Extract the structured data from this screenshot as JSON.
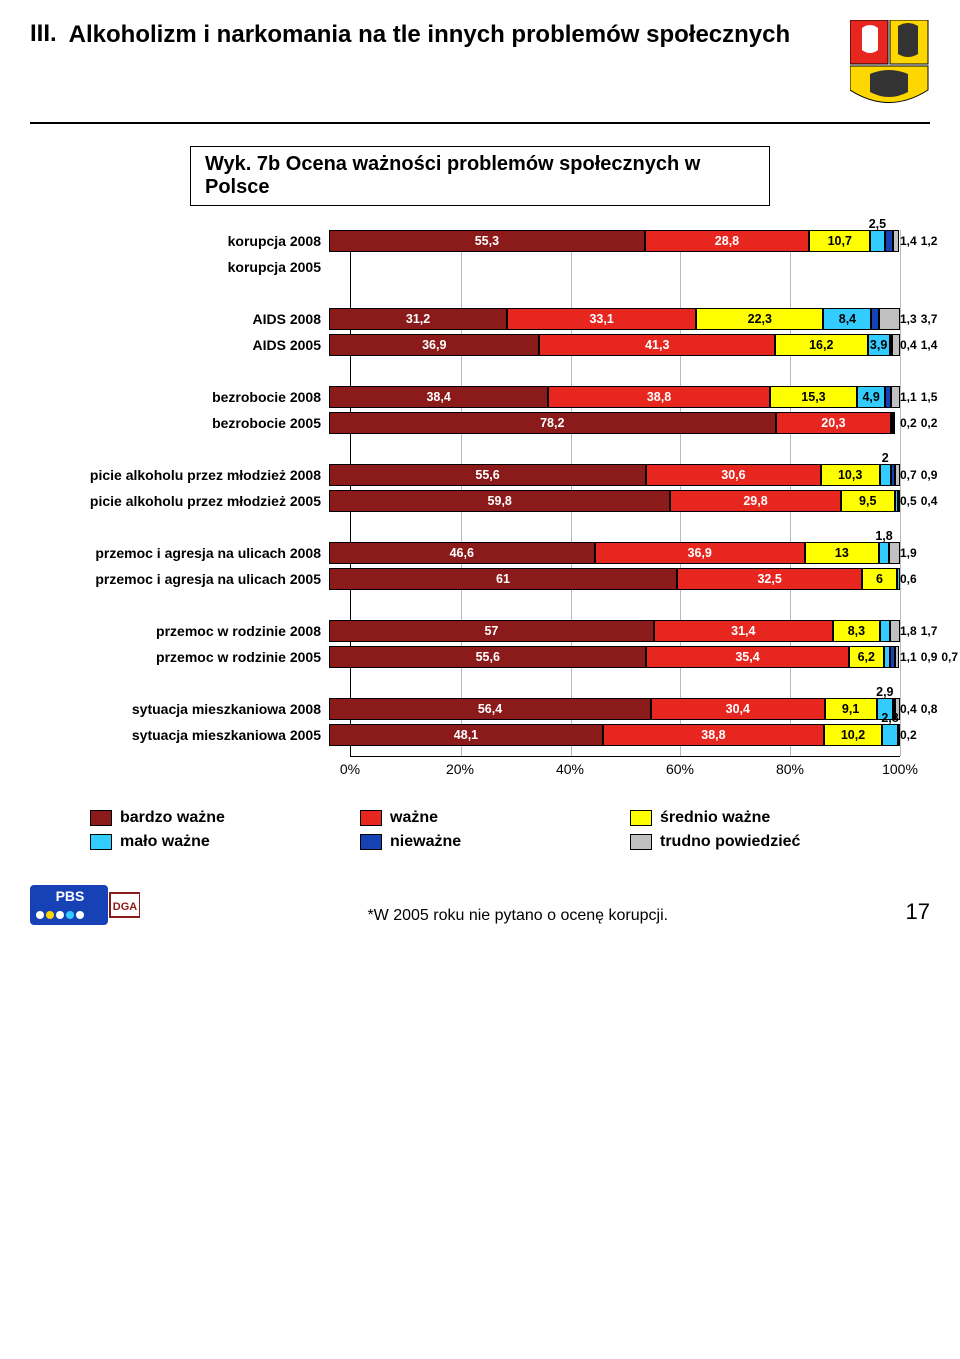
{
  "section_number": "III.",
  "main_title": "Alkoholizm i narkomania na tle innych problemów społecznych",
  "subtitle": "Wyk. 7b Ocena ważności problemów społecznych w Polsce",
  "colors": {
    "bardzo_wazne": "#8b1a1a",
    "wazne": "#e6261f",
    "srednio_wazne": "#ffff00",
    "malo_wazne": "#33ccff",
    "niewazne": "#1642b5",
    "trudno": "#c0c0c0",
    "text_light": "#ffffff",
    "text_dark": "#000000",
    "grid": "#bbbbbb",
    "border": "#000000"
  },
  "x_ticks": [
    "0%",
    "20%",
    "40%",
    "60%",
    "80%",
    "100%"
  ],
  "legend": [
    {
      "label": "bardzo ważne",
      "colorKey": "bardzo_wazne"
    },
    {
      "label": "ważne",
      "colorKey": "wazne"
    },
    {
      "label": "średnio ważne",
      "colorKey": "srednio_wazne"
    },
    {
      "label": "mało ważne",
      "colorKey": "malo_wazne"
    },
    {
      "label": "nieważne",
      "colorKey": "niewazne"
    },
    {
      "label": "trudno powiedzieć",
      "colorKey": "trudno"
    }
  ],
  "groups": [
    {
      "rows": [
        {
          "label": "korupcja 2008",
          "segs": [
            {
              "v": 55.3,
              "c": "bardzo_wazne",
              "t": "light"
            },
            {
              "v": 28.8,
              "c": "wazne",
              "t": "light"
            },
            {
              "v": 10.7,
              "c": "srednio_wazne",
              "t": "dark"
            },
            {
              "v": 2.5,
              "c": "malo_wazne",
              "t": "dark"
            },
            {
              "v": 1.4,
              "c": "niewazne",
              "t": "light",
              "overflow": true
            },
            {
              "v": 1.2,
              "c": "trudno",
              "t": "dark",
              "overflow": true
            }
          ]
        },
        {
          "label": "korupcja 2005",
          "segs": []
        }
      ]
    },
    {
      "rows": [
        {
          "label": "AIDS 2008",
          "segs": [
            {
              "v": 31.2,
              "c": "bardzo_wazne",
              "t": "light"
            },
            {
              "v": 33.1,
              "c": "wazne",
              "t": "light"
            },
            {
              "v": 22.3,
              "c": "srednio_wazne",
              "t": "dark"
            },
            {
              "v": 8.4,
              "c": "malo_wazne",
              "t": "dark"
            },
            {
              "v": 1.3,
              "c": "niewazne",
              "t": "light",
              "overflow": true
            },
            {
              "v": 3.7,
              "c": "trudno",
              "t": "dark",
              "overflow": true
            }
          ]
        },
        {
          "label": "AIDS 2005",
          "segs": [
            {
              "v": 36.9,
              "c": "bardzo_wazne",
              "t": "light"
            },
            {
              "v": 41.3,
              "c": "wazne",
              "t": "light"
            },
            {
              "v": 16.2,
              "c": "srednio_wazne",
              "t": "dark"
            },
            {
              "v": 3.9,
              "c": "malo_wazne",
              "t": "dark"
            },
            {
              "v": 0.4,
              "c": "niewazne",
              "t": "light",
              "overflow": true
            },
            {
              "v": 1.4,
              "c": "trudno",
              "t": "dark",
              "overflow": true
            }
          ]
        }
      ]
    },
    {
      "rows": [
        {
          "label": "bezrobocie 2008",
          "segs": [
            {
              "v": 38.4,
              "c": "bardzo_wazne",
              "t": "light"
            },
            {
              "v": 38.8,
              "c": "wazne",
              "t": "light"
            },
            {
              "v": 15.3,
              "c": "srednio_wazne",
              "t": "dark"
            },
            {
              "v": 4.9,
              "c": "malo_wazne",
              "t": "dark"
            },
            {
              "v": 1.1,
              "c": "niewazne",
              "t": "light",
              "overflow": true
            },
            {
              "v": 1.5,
              "c": "trudno",
              "t": "dark",
              "overflow": true
            }
          ]
        },
        {
          "label": "bezrobocie 2005",
          "segs": [
            {
              "v": 78.2,
              "c": "bardzo_wazne",
              "t": "light"
            },
            {
              "v": 20.3,
              "c": "wazne",
              "t": "light"
            },
            {
              "v": 0.2,
              "c": "srednio_wazne",
              "t": "dark",
              "overflow": true
            },
            {
              "v": 0.2,
              "c": "niewazne",
              "t": "light",
              "overflow": true
            }
          ]
        }
      ]
    },
    {
      "rows": [
        {
          "label": "picie alkoholu przez młodzież 2008",
          "segs": [
            {
              "v": 55.6,
              "c": "bardzo_wazne",
              "t": "light"
            },
            {
              "v": 30.6,
              "c": "wazne",
              "t": "light"
            },
            {
              "v": 10.3,
              "c": "srednio_wazne",
              "t": "dark"
            },
            {
              "v": 2,
              "c": "malo_wazne",
              "t": "dark"
            },
            {
              "v": 0.7,
              "c": "niewazne",
              "t": "light",
              "overflow": true
            },
            {
              "v": 0.9,
              "c": "trudno",
              "t": "dark",
              "overflow": true
            }
          ]
        },
        {
          "label": "picie alkoholu przez młodzież 2005",
          "segs": [
            {
              "v": 59.8,
              "c": "bardzo_wazne",
              "t": "light"
            },
            {
              "v": 29.8,
              "c": "wazne",
              "t": "light"
            },
            {
              "v": 9.5,
              "c": "srednio_wazne",
              "t": "dark"
            },
            {
              "v": 0.5,
              "c": "malo_wazne",
              "t": "dark",
              "overflow": true
            },
            {
              "v": 0.4,
              "c": "trudno",
              "t": "dark",
              "overflow": true
            }
          ]
        }
      ]
    },
    {
      "rows": [
        {
          "label": "przemoc i agresja na ulicach 2008",
          "segs": [
            {
              "v": 46.6,
              "c": "bardzo_wazne",
              "t": "light"
            },
            {
              "v": 36.9,
              "c": "wazne",
              "t": "light"
            },
            {
              "v": 13,
              "c": "srednio_wazne",
              "t": "dark"
            },
            {
              "v": 1.8,
              "c": "malo_wazne",
              "t": "dark"
            },
            {
              "v": 1.9,
              "c": "trudno",
              "t": "dark",
              "overflow": true
            }
          ]
        },
        {
          "label": "przemoc i agresja na ulicach 2005",
          "segs": [
            {
              "v": 61,
              "c": "bardzo_wazne",
              "t": "light"
            },
            {
              "v": 32.5,
              "c": "wazne",
              "t": "light"
            },
            {
              "v": 6,
              "c": "srednio_wazne",
              "t": "dark"
            },
            {
              "v": 0.6,
              "c": "malo_wazne",
              "t": "dark",
              "overflow": true
            }
          ]
        }
      ]
    },
    {
      "rows": [
        {
          "label": "przemoc w rodzinie 2008",
          "segs": [
            {
              "v": 57,
              "c": "bardzo_wazne",
              "t": "light"
            },
            {
              "v": 31.4,
              "c": "wazne",
              "t": "light"
            },
            {
              "v": 8.3,
              "c": "srednio_wazne",
              "t": "dark"
            },
            {
              "v": 1.8,
              "c": "malo_wazne",
              "t": "dark",
              "overflow": true
            },
            {
              "v": 1.7,
              "c": "trudno",
              "t": "dark",
              "overflow": true
            }
          ]
        },
        {
          "label": "przemoc w rodzinie 2005",
          "segs": [
            {
              "v": 55.6,
              "c": "bardzo_wazne",
              "t": "light"
            },
            {
              "v": 35.4,
              "c": "wazne",
              "t": "light"
            },
            {
              "v": 6.2,
              "c": "srednio_wazne",
              "t": "dark"
            },
            {
              "v": 1.1,
              "c": "malo_wazne",
              "t": "dark",
              "overflow": true
            },
            {
              "v": 0.9,
              "c": "niewazne",
              "t": "light",
              "overflow": true
            },
            {
              "v": 0.7,
              "c": "trudno",
              "t": "dark",
              "overflow": true
            }
          ]
        }
      ]
    },
    {
      "rows": [
        {
          "label": "sytuacja mieszkaniowa 2008",
          "segs": [
            {
              "v": 56.4,
              "c": "bardzo_wazne",
              "t": "light"
            },
            {
              "v": 30.4,
              "c": "wazne",
              "t": "light"
            },
            {
              "v": 9.1,
              "c": "srednio_wazne",
              "t": "dark"
            },
            {
              "v": 2.9,
              "c": "malo_wazne",
              "t": "dark"
            },
            {
              "v": 0.4,
              "c": "niewazne",
              "t": "light",
              "overflow": true
            },
            {
              "v": 0.8,
              "c": "trudno",
              "t": "dark",
              "overflow": true
            }
          ]
        },
        {
          "label": "sytuacja mieszkaniowa 2005",
          "segs": [
            {
              "v": 48.1,
              "c": "bardzo_wazne",
              "t": "light"
            },
            {
              "v": 38.8,
              "c": "wazne",
              "t": "light"
            },
            {
              "v": 10.2,
              "c": "srednio_wazne",
              "t": "dark"
            },
            {
              "v": 2.8,
              "c": "malo_wazne",
              "t": "dark"
            },
            {
              "v": 0.2,
              "c": "trudno",
              "t": "dark",
              "overflow": true
            }
          ]
        }
      ]
    }
  ],
  "footnote": "*W 2005 roku nie pytano o ocenę korupcji.",
  "page_number": "17",
  "logos": {
    "pbs": "PBS",
    "dga": "DGA"
  }
}
